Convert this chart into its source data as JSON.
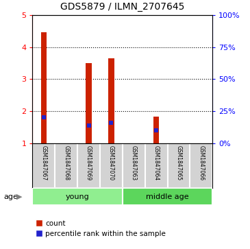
{
  "title": "GDS5879 / ILMN_2707645",
  "samples": [
    "GSM1847067",
    "GSM1847068",
    "GSM1847069",
    "GSM1847070",
    "GSM1847063",
    "GSM1847064",
    "GSM1847065",
    "GSM1847066"
  ],
  "counts": [
    4.45,
    1.0,
    3.5,
    3.65,
    1.0,
    1.82,
    1.0,
    1.0
  ],
  "percentile_ranks_pct": [
    20,
    null,
    14,
    16,
    null,
    10,
    null,
    null
  ],
  "groups": [
    {
      "label": "young",
      "start": 0,
      "end": 3,
      "color": "#90EE90"
    },
    {
      "label": "middle age",
      "start": 4,
      "end": 7,
      "color": "#5CD65C"
    }
  ],
  "ylim_left": [
    1,
    5
  ],
  "ylim_right": [
    0,
    100
  ],
  "yticks_left": [
    1,
    2,
    3,
    4,
    5
  ],
  "yticks_right": [
    0,
    25,
    50,
    75,
    100
  ],
  "bar_color": "#CC2200",
  "percentile_color": "#2222CC",
  "label_bg_color": "#D3D3D3",
  "age_label": "age",
  "legend_count": "count",
  "legend_percentile": "percentile rank within the sample",
  "bar_width": 0.25
}
